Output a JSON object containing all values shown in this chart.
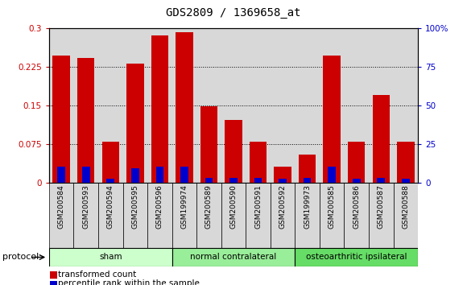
{
  "title": "GDS2809 / 1369658_at",
  "samples": [
    "GSM200584",
    "GSM200593",
    "GSM200594",
    "GSM200595",
    "GSM200596",
    "GSM199974",
    "GSM200589",
    "GSM200590",
    "GSM200591",
    "GSM200592",
    "GSM199973",
    "GSM200585",
    "GSM200586",
    "GSM200587",
    "GSM200588"
  ],
  "red_values": [
    0.248,
    0.242,
    0.079,
    0.232,
    0.287,
    0.292,
    0.148,
    0.122,
    0.079,
    0.03,
    0.055,
    0.248,
    0.079,
    0.17,
    0.079
  ],
  "blue_percentile": [
    10,
    10,
    2.5,
    9,
    10,
    10,
    3,
    3,
    3,
    2.5,
    3,
    10,
    2.5,
    3,
    2.5
  ],
  "groups": [
    {
      "label": "sham",
      "start": 0,
      "end": 5,
      "color": "#ccffcc"
    },
    {
      "label": "normal contralateral",
      "start": 5,
      "end": 10,
      "color": "#99ee99"
    },
    {
      "label": "osteoarthritic ipsilateral",
      "start": 10,
      "end": 15,
      "color": "#66dd66"
    }
  ],
  "ylim_left": [
    0,
    0.3
  ],
  "ylim_right": [
    0,
    100
  ],
  "yticks_left": [
    0,
    0.075,
    0.15,
    0.225,
    0.3
  ],
  "yticks_right": [
    0,
    25,
    50,
    75,
    100
  ],
  "red_color": "#cc0000",
  "blue_color": "#0000cc",
  "bar_bg": "#d8d8d8",
  "plot_bg": "#ffffff",
  "legend_items": [
    {
      "color": "#cc0000",
      "label": "transformed count"
    },
    {
      "color": "#0000cc",
      "label": "percentile rank within the sample"
    }
  ],
  "protocol_label": "protocol",
  "title_fontsize": 10,
  "tick_fontsize": 7.5,
  "sample_fontsize": 6.5,
  "group_fontsize": 8.5
}
